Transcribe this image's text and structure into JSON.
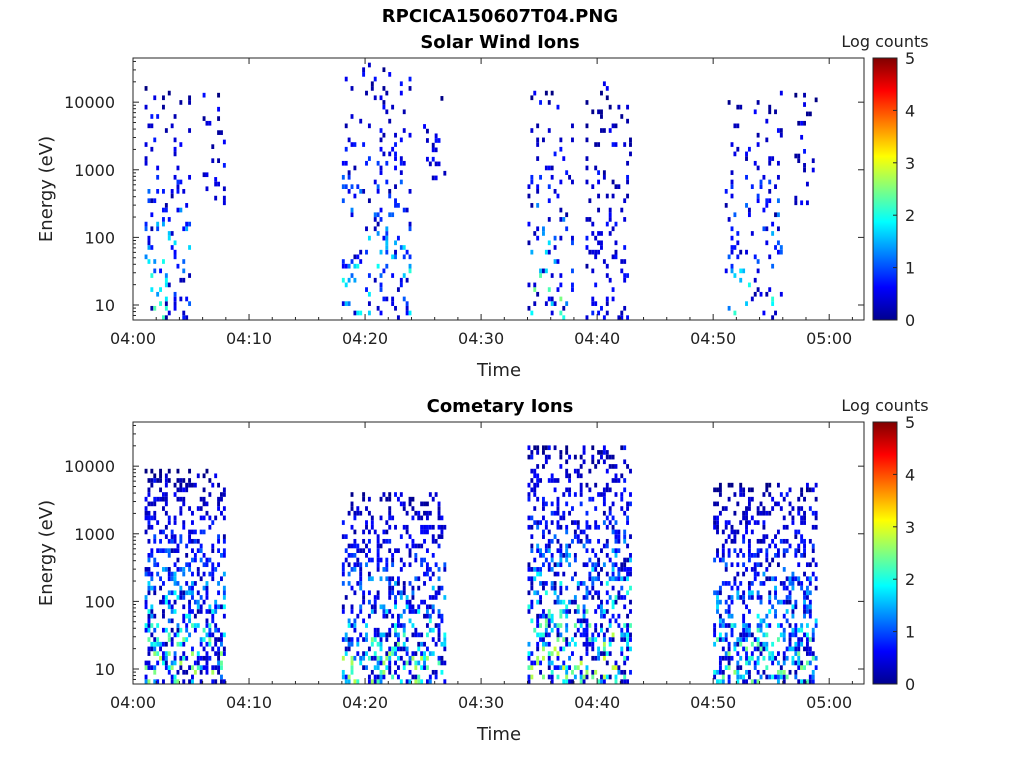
{
  "figure_title": "RPCICA150607T04.PNG",
  "chart_data": [
    {
      "type": "heatmap",
      "title": "Solar Wind Ions",
      "xlabel": "Time",
      "ylabel": "Energy (eV)",
      "y_scale": "log",
      "ylim": [
        6,
        45000
      ],
      "xlim": [
        "04:00",
        "05:03"
      ],
      "x_tick_labels": [
        "04:00",
        "04:10",
        "04:20",
        "04:30",
        "04:40",
        "04:50",
        "05:00"
      ],
      "y_tick_labels": [
        "10",
        "100",
        "1000",
        "10000"
      ],
      "colorbar": {
        "label": "Log counts",
        "range": [
          0,
          5
        ],
        "tick_labels": [
          "0",
          "1",
          "2",
          "3",
          "4",
          "5"
        ],
        "colormap": "jet"
      },
      "bursts": [
        {
          "t_start": "04:01",
          "t_end": "04:05",
          "e_min": 6,
          "e_max": 15000,
          "peak_log_counts": 2.3
        },
        {
          "t_start": "04:06",
          "t_end": "04:08",
          "e_min": 300,
          "e_max": 12000,
          "peak_log_counts": 0.5
        },
        {
          "t_start": "04:18",
          "t_end": "04:24",
          "e_min": 6,
          "e_max": 35000,
          "peak_log_counts": 2.2
        },
        {
          "t_start": "04:25",
          "t_end": "04:27",
          "e_min": 700,
          "e_max": 14000,
          "peak_log_counts": 0.5
        },
        {
          "t_start": "04:34",
          "t_end": "04:38",
          "e_min": 6,
          "e_max": 13000,
          "peak_log_counts": 2.5
        },
        {
          "t_start": "04:39",
          "t_end": "04:43",
          "e_min": 6,
          "e_max": 20000,
          "peak_log_counts": 0.8
        },
        {
          "t_start": "04:51",
          "t_end": "04:56",
          "e_min": 6,
          "e_max": 13000,
          "peak_log_counts": 2.2
        },
        {
          "t_start": "04:57",
          "t_end": "04:59",
          "e_min": 300,
          "e_max": 12000,
          "peak_log_counts": 0.5
        }
      ]
    },
    {
      "type": "heatmap",
      "title": "Cometary Ions",
      "xlabel": "Time",
      "ylabel": "Energy (eV)",
      "y_scale": "log",
      "ylim": [
        6,
        45000
      ],
      "xlim": [
        "04:00",
        "05:03"
      ],
      "x_tick_labels": [
        "04:00",
        "04:10",
        "04:20",
        "04:30",
        "04:40",
        "04:50",
        "05:00"
      ],
      "y_tick_labels": [
        "10",
        "100",
        "1000",
        "10000"
      ],
      "colorbar": {
        "label": "Log counts",
        "range": [
          0,
          5
        ],
        "tick_labels": [
          "0",
          "1",
          "2",
          "3",
          "4",
          "5"
        ],
        "colormap": "jet"
      },
      "bursts": [
        {
          "t_start": "04:01",
          "t_end": "04:08",
          "e_min": 6,
          "e_max": 8000,
          "peak_log_counts": 2.8
        },
        {
          "t_start": "04:18",
          "t_end": "04:27",
          "e_min": 6,
          "e_max": 4000,
          "peak_log_counts": 2.8
        },
        {
          "t_start": "04:34",
          "t_end": "04:43",
          "e_min": 6,
          "e_max": 19000,
          "peak_log_counts": 3.0
        },
        {
          "t_start": "04:50",
          "t_end": "04:59",
          "e_min": 6,
          "e_max": 5500,
          "peak_log_counts": 2.6
        }
      ]
    }
  ]
}
